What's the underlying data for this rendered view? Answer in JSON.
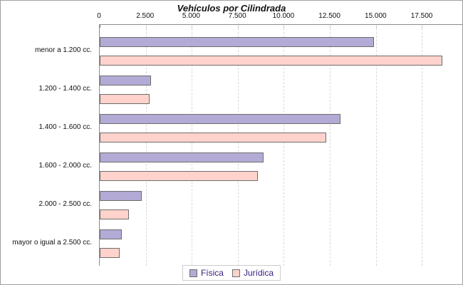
{
  "title": "Vehículos por Cilindrada",
  "colors": {
    "fisica_fill": "#b3aad6",
    "fisica_border": "#6e6e6e",
    "juridica_fill": "#ffd2cc",
    "juridica_border": "#6e6e6e",
    "legend_text": "#3b2080",
    "gridline": "#d9d9d9",
    "axis": "#8c8c8c",
    "background": "#ffffff"
  },
  "chart_data": {
    "type": "bar",
    "orientation": "horizontal",
    "title": "Vehículos por Cilindrada",
    "categories": [
      "menor a 1.200 cc.",
      "1.200 - 1.400 cc.",
      "1.400 - 1.600 cc.",
      "1.600 - 2.000 cc.",
      "2.000 - 2.500 cc.",
      "mayor o igual a 2.500 cc."
    ],
    "series": [
      {
        "name": "Física",
        "color": "#b3aad6",
        "border": "#6e6e6e",
        "values": [
          14900,
          2800,
          13100,
          8900,
          2300,
          1200
        ]
      },
      {
        "name": "Jurídica",
        "color": "#ffd2cc",
        "border": "#6e6e6e",
        "values": [
          18600,
          2700,
          12300,
          8600,
          1600,
          1100
        ]
      }
    ],
    "x_axis": {
      "ticks": [
        0,
        2500,
        5000,
        7500,
        10000,
        12500,
        15000,
        17500
      ],
      "tick_labels": [
        "0",
        "2.500",
        "5.000",
        "7.500",
        "10.000",
        "12.500",
        "15.000",
        "17.500"
      ],
      "max": 19700
    },
    "ylabel": "",
    "xlabel": "",
    "grid": "vertical-dashed",
    "legend_position": "bottom"
  },
  "legend": {
    "items": [
      "Física",
      "Jurídica"
    ]
  }
}
